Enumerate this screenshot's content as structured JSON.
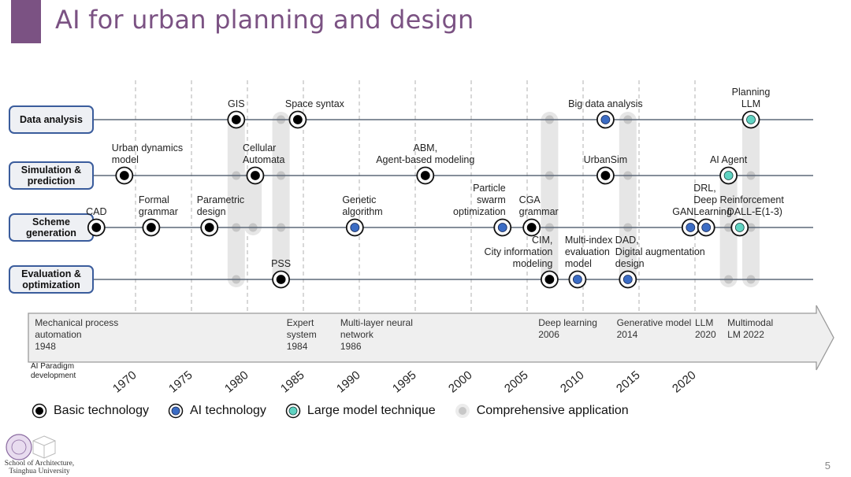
{
  "slide": {
    "title": "AI for urban planning and design",
    "page_number": "5",
    "institution": [
      "School of Architecture,",
      "Tsinghua University"
    ]
  },
  "colors": {
    "accent": "#7b5283",
    "basic": "#000000",
    "ai": "#3b6cc4",
    "large_model": "#5fd3c2",
    "comprehensive": "#c8c8c8",
    "category_border": "#3a5c9c",
    "category_fill": "#eef0f4"
  },
  "categories": [
    {
      "id": "data",
      "label": [
        "Data analysis"
      ]
    },
    {
      "id": "sim",
      "label": [
        "Simulation &",
        "prediction"
      ]
    },
    {
      "id": "scheme",
      "label": [
        "Scheme",
        "generation"
      ]
    },
    {
      "id": "eval",
      "label": [
        "Evaluation &",
        "optimization"
      ]
    }
  ],
  "years": [
    1970,
    1975,
    1980,
    1985,
    1990,
    1995,
    2000,
    2005,
    2010,
    2015,
    2020
  ],
  "technologies": [
    {
      "row": "data",
      "year": 1979,
      "type": "basic",
      "label": [
        "GIS"
      ],
      "anchor": "middle",
      "pos": "above"
    },
    {
      "row": "data",
      "year": 1984.5,
      "type": "basic",
      "label": [
        "Space syntax"
      ],
      "anchor": "start",
      "pos": "above"
    },
    {
      "row": "data",
      "year": 2012,
      "type": "ai",
      "label": [
        "Big data analysis"
      ],
      "anchor": "middle",
      "pos": "above"
    },
    {
      "row": "data",
      "year": 2025,
      "type": "large_model",
      "label": [
        "Planning",
        "LLM"
      ],
      "anchor": "middle",
      "pos": "above"
    },
    {
      "row": "sim",
      "year": 1969,
      "type": "basic",
      "label": [
        "Urban dynamics",
        "model"
      ],
      "anchor": "start",
      "pos": "above"
    },
    {
      "row": "sim",
      "year": 1980.7,
      "type": "basic",
      "label": [
        "Cellular",
        "Automata"
      ],
      "anchor": "start",
      "pos": "above"
    },
    {
      "row": "sim",
      "year": 1995.9,
      "type": "basic",
      "label": [
        "ABM,",
        "Agent-based modeling"
      ],
      "anchor": "middle",
      "pos": "above"
    },
    {
      "row": "sim",
      "year": 2012,
      "type": "basic",
      "label": [
        "UrbanSim"
      ],
      "anchor": "middle",
      "pos": "above"
    },
    {
      "row": "sim",
      "year": 2023,
      "type": "large_model",
      "label": [
        "AI Agent"
      ],
      "anchor": "middle",
      "pos": "above"
    },
    {
      "row": "scheme",
      "year": 1966.5,
      "type": "basic",
      "label": [
        "CAD"
      ],
      "anchor": "middle",
      "pos": "above"
    },
    {
      "row": "scheme",
      "year": 1971.4,
      "type": "basic",
      "label": [
        "Formal",
        "grammar"
      ],
      "anchor": "start",
      "pos": "above"
    },
    {
      "row": "scheme",
      "year": 1976.6,
      "type": "basic",
      "label": [
        "Parametric",
        "design"
      ],
      "anchor": "start",
      "pos": "above"
    },
    {
      "row": "scheme",
      "year": 1989.6,
      "type": "ai",
      "label": [
        "Genetic",
        "algorithm"
      ],
      "anchor": "start",
      "pos": "above"
    },
    {
      "row": "scheme",
      "year": 2002.8,
      "type": "ai",
      "label": [
        "Particle",
        "swarm",
        "optimization"
      ],
      "anchor": "end",
      "pos": "above"
    },
    {
      "row": "scheme",
      "year": 2005.4,
      "type": "basic",
      "label": [
        "CGA",
        "grammar"
      ],
      "anchor": "start",
      "pos": "above"
    },
    {
      "row": "scheme",
      "year": 2019.6,
      "type": "ai",
      "label": [
        "GAN"
      ],
      "anchor": "end",
      "pos": "above"
    },
    {
      "row": "scheme",
      "year": 2021,
      "type": "ai",
      "label": [
        "DRL,",
        "Deep Reinforcement",
        "Learning"
      ],
      "anchor": "start",
      "pos": "above"
    },
    {
      "row": "scheme",
      "year": 2024,
      "type": "large_model",
      "label": [
        "DALL-E(1-3)"
      ],
      "anchor": "start",
      "pos": "above"
    },
    {
      "row": "eval",
      "year": 1983,
      "type": "basic",
      "label": [
        "PSS"
      ],
      "anchor": "middle",
      "pos": "above"
    },
    {
      "row": "eval",
      "year": 2007,
      "type": "basic",
      "label": [
        "CIM,",
        "City information",
        "modeling"
      ],
      "anchor": "end",
      "pos": "above"
    },
    {
      "row": "eval",
      "year": 2009.5,
      "type": "ai",
      "label": [
        "Multi-index",
        "evaluation",
        "model"
      ],
      "anchor": "start",
      "pos": "above"
    },
    {
      "row": "eval",
      "year": 2014,
      "type": "ai",
      "label": [
        "DAD,",
        "Digital augmentation",
        "design"
      ],
      "anchor": "start",
      "pos": "above"
    }
  ],
  "comprehensive_bands": [
    {
      "year": 1979,
      "from": "data",
      "to": "eval"
    },
    {
      "year": 1980.5,
      "from": "sim",
      "to": "scheme"
    },
    {
      "year": 1983,
      "from": "data",
      "to": "eval"
    },
    {
      "year": 2007,
      "from": "data",
      "to": "eval"
    },
    {
      "year": 2014,
      "from": "data",
      "to": "eval"
    },
    {
      "year": 2023,
      "from": "sim",
      "to": "eval"
    },
    {
      "year": 2025,
      "from": "data",
      "to": "eval"
    }
  ],
  "paradigm": {
    "label": [
      "AI Paradigm",
      "development"
    ],
    "milestones": [
      {
        "x_year": 1961,
        "lines": [
          "Mechanical process",
          "automation",
          "1948"
        ]
      },
      {
        "x_year": 1983.5,
        "lines": [
          "Expert",
          "system",
          "1984"
        ]
      },
      {
        "x_year": 1988.3,
        "lines": [
          "Multi-layer neural",
          "network",
          "1986"
        ]
      },
      {
        "x_year": 2006,
        "lines": [
          "Deep learning",
          "2006"
        ]
      },
      {
        "x_year": 2013,
        "lines": [
          "Generative model",
          "2014"
        ]
      },
      {
        "x_year": 2020,
        "lines": [
          "LLM",
          "2020"
        ]
      },
      {
        "x_year": 2022.9,
        "lines": [
          "Multimodal",
          "LM 2022"
        ]
      }
    ]
  },
  "legend": [
    {
      "type": "basic",
      "label": "Basic technology"
    },
    {
      "type": "ai",
      "label": "AI technology"
    },
    {
      "type": "large_model",
      "label": "Large model technique"
    },
    {
      "type": "comprehensive",
      "label": "Comprehensive application"
    }
  ]
}
